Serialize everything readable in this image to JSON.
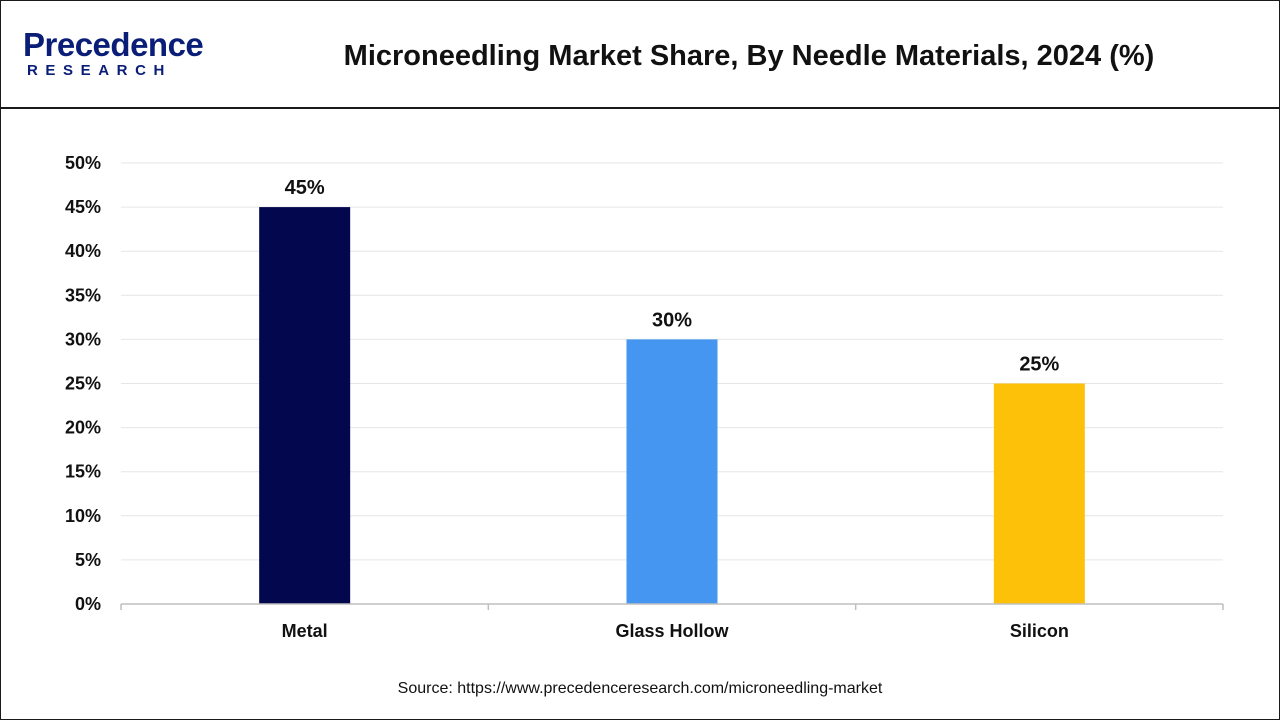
{
  "brand": {
    "logo_top": "Precedence",
    "logo_bottom": "RESEARCH",
    "color": "#0a1e78"
  },
  "header": {
    "title": "Microneedling Market Share, By Needle Materials, 2024 (%)"
  },
  "footer": {
    "source": "Source: https://www.precedenceresearch.com/microneedling-market"
  },
  "chart_data": {
    "type": "bar",
    "title": "Microneedling Market Share, By Needle Materials, 2024 (%)",
    "xlabel": "",
    "ylabel": "",
    "categories": [
      "Metal",
      "Glass Hollow",
      "Silicon"
    ],
    "values": [
      45,
      30,
      25
    ],
    "value_labels": [
      "45%",
      "30%",
      "25%"
    ],
    "colors": [
      "#03074d",
      "#4496f0",
      "#fec109"
    ],
    "ylim": [
      0,
      50
    ],
    "yticks": [
      0,
      5,
      10,
      15,
      20,
      25,
      30,
      35,
      40,
      45,
      50
    ],
    "ytick_labels": [
      "0%",
      "5%",
      "10%",
      "15%",
      "20%",
      "25%",
      "30%",
      "35%",
      "40%",
      "45%",
      "50%"
    ],
    "grid": true,
    "legend": "none"
  }
}
